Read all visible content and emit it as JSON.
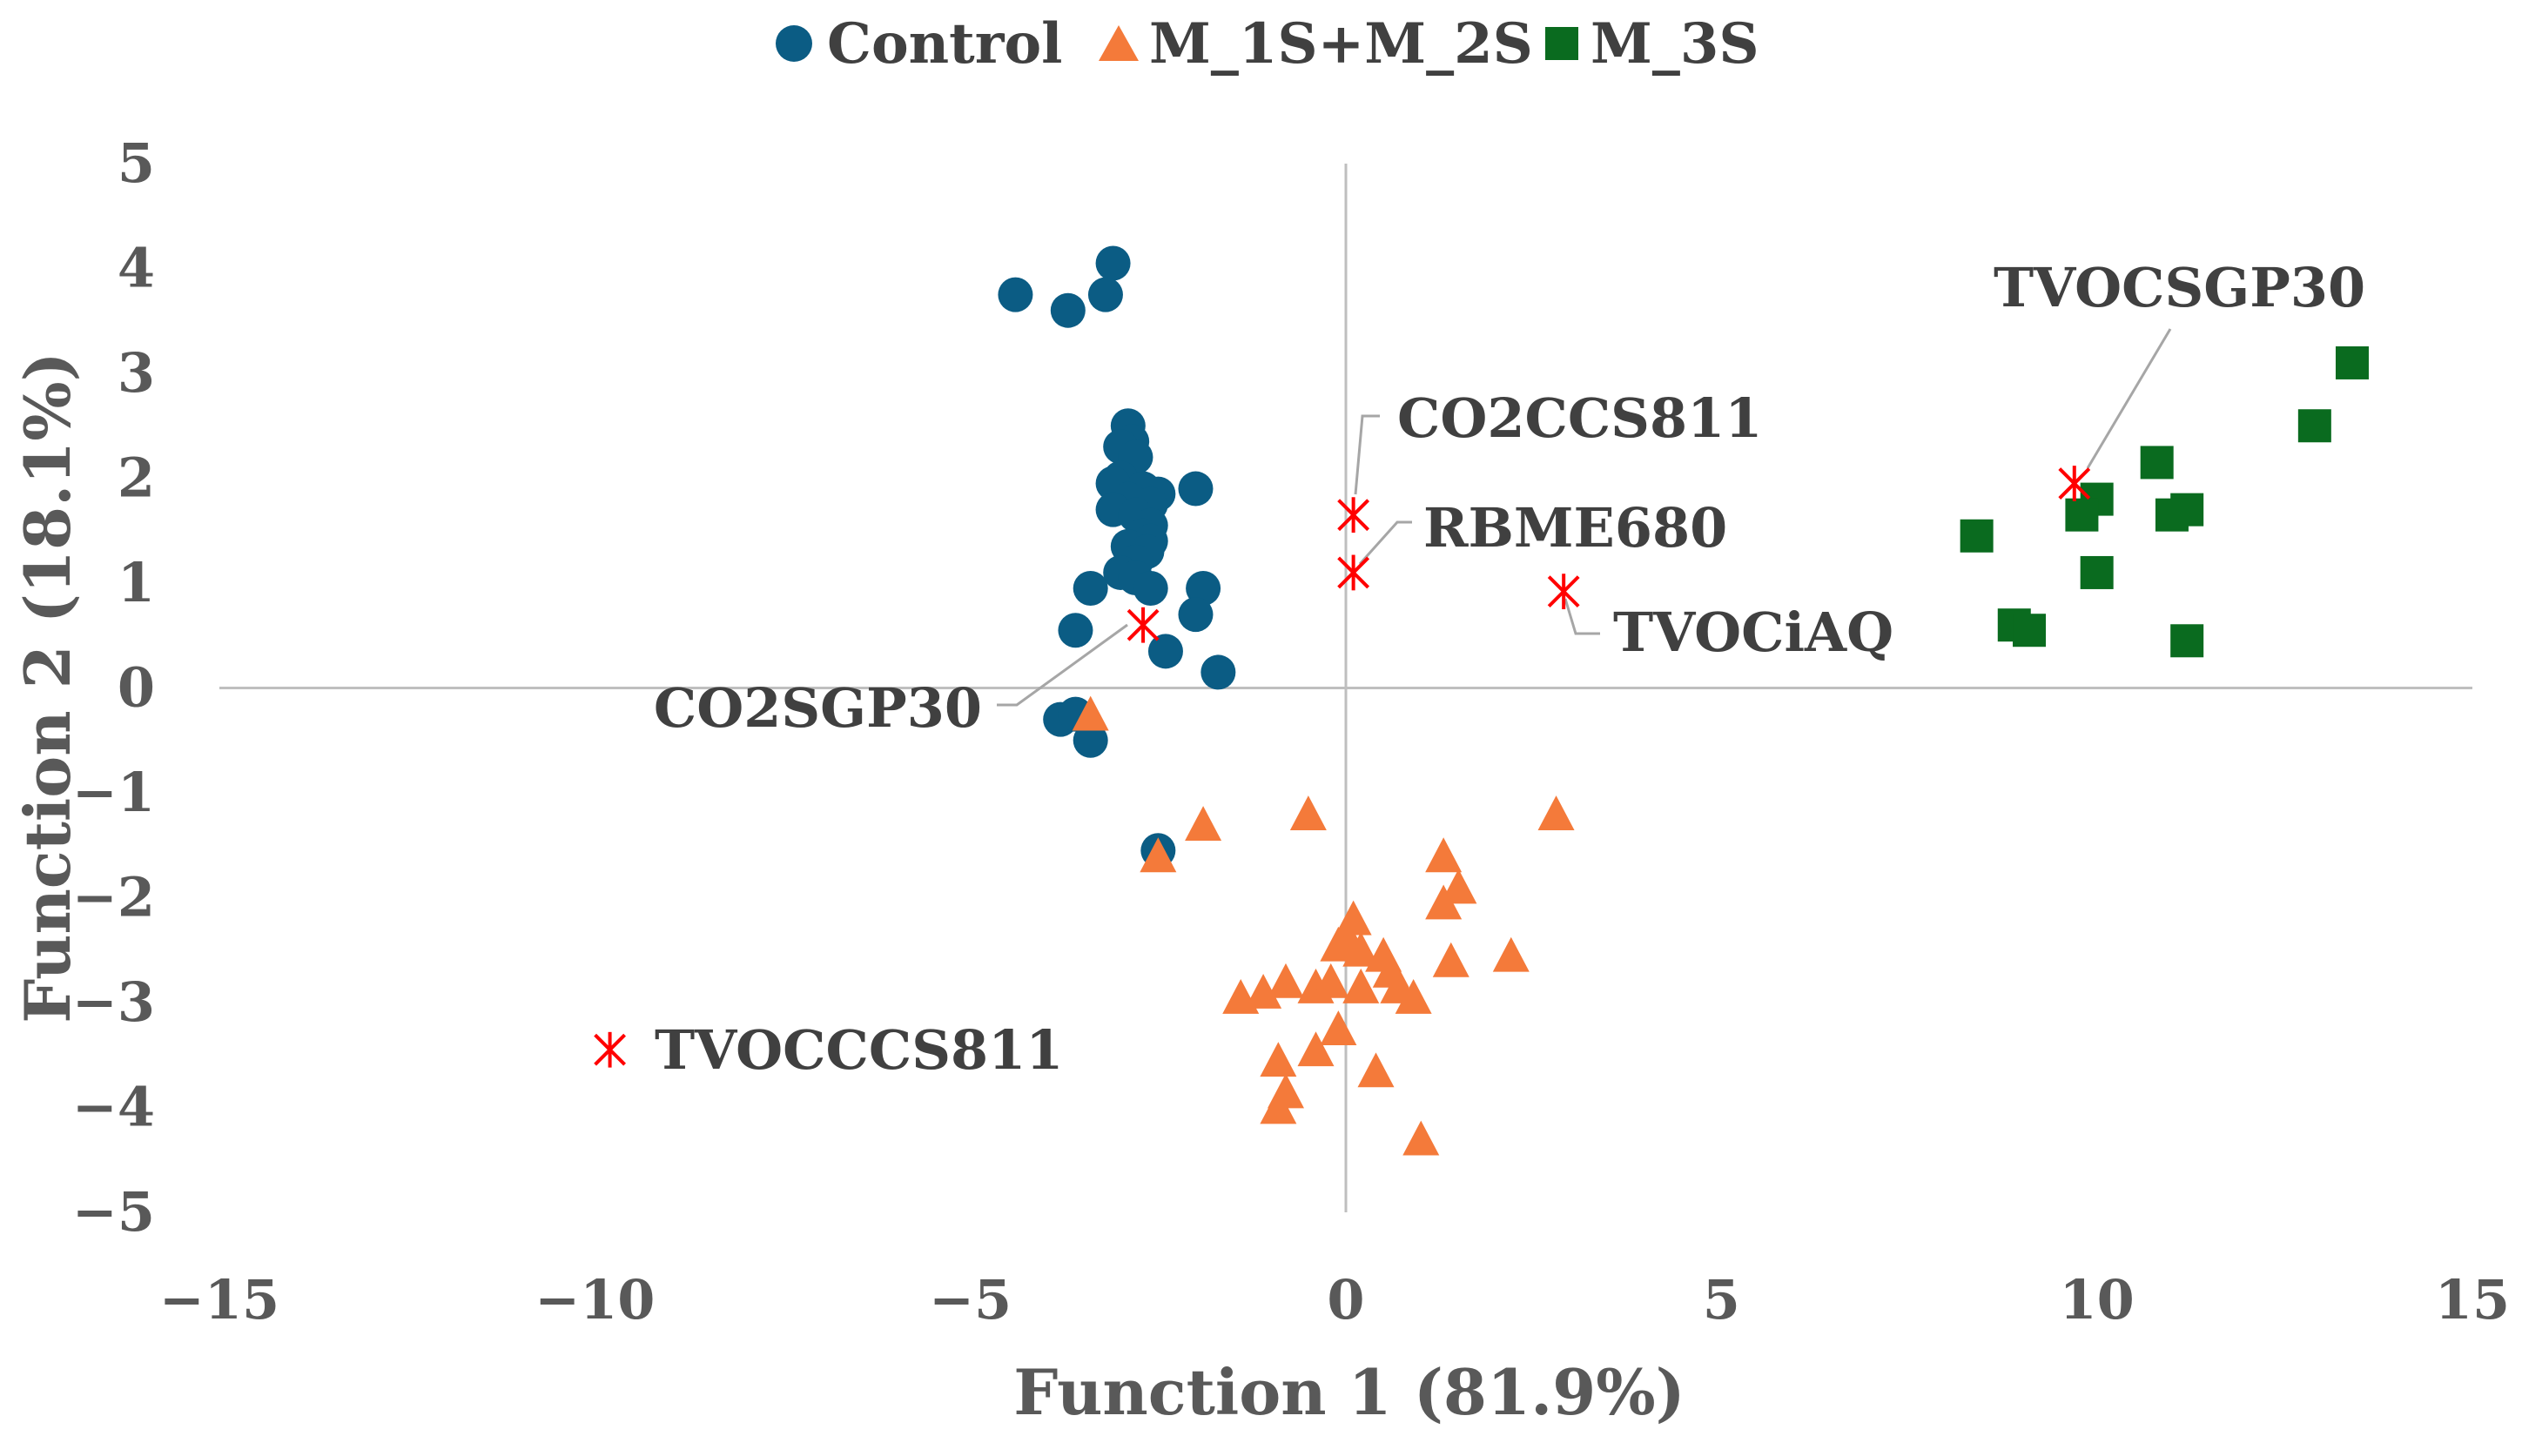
{
  "chart_data": {
    "type": "scatter",
    "title": "",
    "xlabel": "Function 1 (81.9%)",
    "ylabel": "Function 2 (18.1%)",
    "xlim": [
      -15,
      15
    ],
    "ylim": [
      -5,
      5
    ],
    "xticks": [
      -15,
      -10,
      -5,
      0,
      5,
      10,
      15
    ],
    "yticks": [
      5,
      4,
      3,
      2,
      1,
      0,
      -1,
      -2,
      -3,
      -4,
      -5
    ],
    "xtick_labels": [
      "−15",
      "−10",
      "−5",
      "0",
      "5",
      "10",
      "15"
    ],
    "ytick_labels": [
      "5",
      "4",
      "3",
      "2",
      "1",
      "0",
      "−1",
      "−2",
      "−3",
      "−4",
      "−5"
    ],
    "grid": false,
    "legend_position": "top-center",
    "series": [
      {
        "name": "Control",
        "marker": "circle",
        "color": "#0b5c84",
        "points": [
          [
            -4.4,
            3.75
          ],
          [
            -3.7,
            3.6
          ],
          [
            -3.1,
            4.05
          ],
          [
            -3.2,
            3.75
          ],
          [
            -2.9,
            2.5
          ],
          [
            -2.85,
            2.35
          ],
          [
            -3.0,
            2.3
          ],
          [
            -2.8,
            2.2
          ],
          [
            -3.0,
            2.0
          ],
          [
            -3.1,
            1.95
          ],
          [
            -2.7,
            1.9
          ],
          [
            -2.5,
            1.85
          ],
          [
            -2.9,
            1.8
          ],
          [
            -2.6,
            1.75
          ],
          [
            -3.1,
            1.7
          ],
          [
            -2.8,
            1.65
          ],
          [
            -2.6,
            1.55
          ],
          [
            -2.7,
            1.45
          ],
          [
            -2.6,
            1.4
          ],
          [
            -2.9,
            1.35
          ],
          [
            -2.65,
            1.3
          ],
          [
            -2.8,
            1.2
          ],
          [
            -2.0,
            1.9
          ],
          [
            -3.0,
            1.1
          ],
          [
            -2.8,
            1.05
          ],
          [
            -2.6,
            0.95
          ],
          [
            -3.4,
            0.95
          ],
          [
            -1.9,
            0.95
          ],
          [
            -2.0,
            0.7
          ],
          [
            -3.6,
            0.55
          ],
          [
            -2.4,
            0.35
          ],
          [
            -1.7,
            0.15
          ],
          [
            -3.8,
            -0.3
          ],
          [
            -3.6,
            -0.25
          ],
          [
            -3.4,
            -0.5
          ],
          [
            -2.5,
            -1.55
          ]
        ]
      },
      {
        "name": "M_1S+M_2S",
        "marker": "triangle",
        "color": "#f47a3a",
        "points": [
          [
            -3.4,
            -0.25
          ],
          [
            -2.5,
            -1.6
          ],
          [
            -1.9,
            -1.3
          ],
          [
            -0.5,
            -1.2
          ],
          [
            2.8,
            -1.2
          ],
          [
            1.3,
            -1.6
          ],
          [
            1.5,
            -1.9
          ],
          [
            1.3,
            -2.05
          ],
          [
            0.1,
            -2.2
          ],
          [
            0.0,
            -2.35
          ],
          [
            -0.1,
            -2.45
          ],
          [
            0.2,
            -2.5
          ],
          [
            0.5,
            -2.55
          ],
          [
            0.6,
            -2.7
          ],
          [
            1.4,
            -2.6
          ],
          [
            2.2,
            -2.55
          ],
          [
            -1.4,
            -2.95
          ],
          [
            -1.1,
            -2.9
          ],
          [
            -0.8,
            -2.8
          ],
          [
            -0.4,
            -2.85
          ],
          [
            -0.2,
            -2.8
          ],
          [
            0.2,
            -2.85
          ],
          [
            0.7,
            -2.85
          ],
          [
            0.9,
            -2.95
          ],
          [
            -0.1,
            -3.25
          ],
          [
            -0.4,
            -3.45
          ],
          [
            -0.9,
            -3.55
          ],
          [
            0.4,
            -3.65
          ],
          [
            -0.8,
            -3.85
          ],
          [
            -0.9,
            -4.0
          ],
          [
            1.0,
            -4.3
          ]
        ]
      },
      {
        "name": "M_3S",
        "marker": "square",
        "color": "#0a6b1f",
        "points": [
          [
            13.4,
            3.1
          ],
          [
            12.9,
            2.5
          ],
          [
            10.8,
            2.15
          ],
          [
            10.0,
            1.8
          ],
          [
            9.8,
            1.65
          ],
          [
            11.2,
            1.7
          ],
          [
            11.0,
            1.65
          ],
          [
            8.4,
            1.45
          ],
          [
            10.0,
            1.1
          ],
          [
            8.9,
            0.6
          ],
          [
            9.1,
            0.55
          ],
          [
            11.2,
            0.45
          ]
        ]
      }
    ],
    "annotations": [
      {
        "label": "TVOCSGP30",
        "x": 9.7,
        "y": 1.95
      },
      {
        "label": "CO2CCS811",
        "x": 0.1,
        "y": 1.65
      },
      {
        "label": "RBME680",
        "x": 0.1,
        "y": 1.1
      },
      {
        "label": "TVOCiAQ",
        "x": 2.9,
        "y": 0.92
      },
      {
        "label": "CO2SGP30",
        "x": -2.7,
        "y": 0.6
      },
      {
        "label": "TVOCCCS811",
        "x": -9.8,
        "y": -3.45
      }
    ],
    "annotation_color": "#ff0000"
  }
}
